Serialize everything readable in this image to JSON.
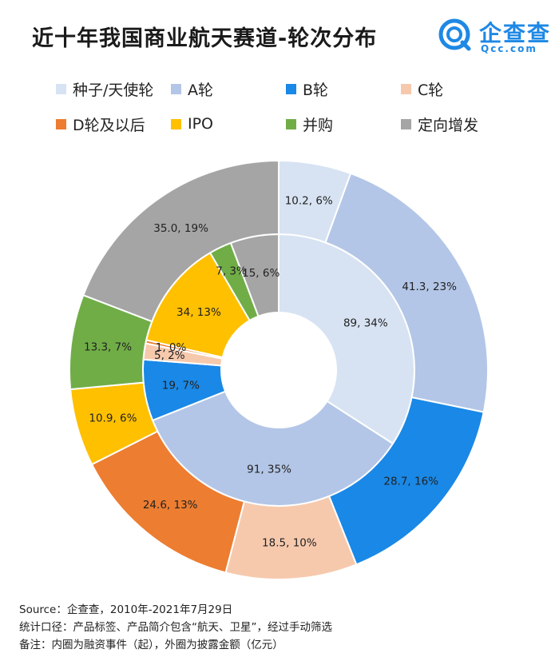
{
  "header": {
    "title": "近十年我国商业航天赛道-轮次分布",
    "logo_name": "企查查",
    "logo_sub": "Qcc.com"
  },
  "legend": [
    {
      "label": "种子/天使轮",
      "color": "#d7e3f3"
    },
    {
      "label": "A轮",
      "color": "#b3c6e7"
    },
    {
      "label": "B轮",
      "color": "#1a88e6"
    },
    {
      "label": "C轮",
      "color": "#f6c9ad"
    },
    {
      "label": "D轮及以后",
      "color": "#ed7d31"
    },
    {
      "label": "IPO",
      "color": "#ffc000"
    },
    {
      "label": "并购",
      "color": "#70ad47"
    },
    {
      "label": "定向增发",
      "color": "#a5a5a5"
    }
  ],
  "chart_data": {
    "type": "pie",
    "subtype": "nested-donut",
    "categories": [
      "种子/天使轮",
      "A轮",
      "B轮",
      "C轮",
      "D轮及以后",
      "IPO",
      "并购",
      "定向增发"
    ],
    "colors": [
      "#d7e3f3",
      "#b3c6e7",
      "#1a88e6",
      "#f6c9ad",
      "#ed7d31",
      "#ffc000",
      "#70ad47",
      "#a5a5a5"
    ],
    "series": [
      {
        "ring": "inner",
        "values": [
          89,
          91,
          19,
          5,
          1,
          34,
          7,
          15
        ],
        "labels": [
          "89, 34%",
          "91, 35%",
          "19, 7%",
          "5, 2%",
          "1, 0%",
          "34, 13%",
          "7, 3%",
          "15, 6%"
        ]
      },
      {
        "ring": "outer",
        "values": [
          10.2,
          41.3,
          28.7,
          18.5,
          24.6,
          10.9,
          13.3,
          35.0
        ],
        "labels": [
          "10.2, 6%",
          "41.3, 23%",
          "28.7, 16%",
          "18.5, 10%",
          "24.6, 13%",
          "10.9, 6%",
          "13.3, 7%",
          "35.0, 19%"
        ]
      }
    ]
  },
  "footer": {
    "source": "Source：企查查，2010年-2021年7月29日",
    "scope": "统计口径：产品标签、产品简介包含“航天、卫星”，经过手动筛选",
    "note": "备注：内圈为融资事件（起），外圈为披露金额（亿元）"
  }
}
